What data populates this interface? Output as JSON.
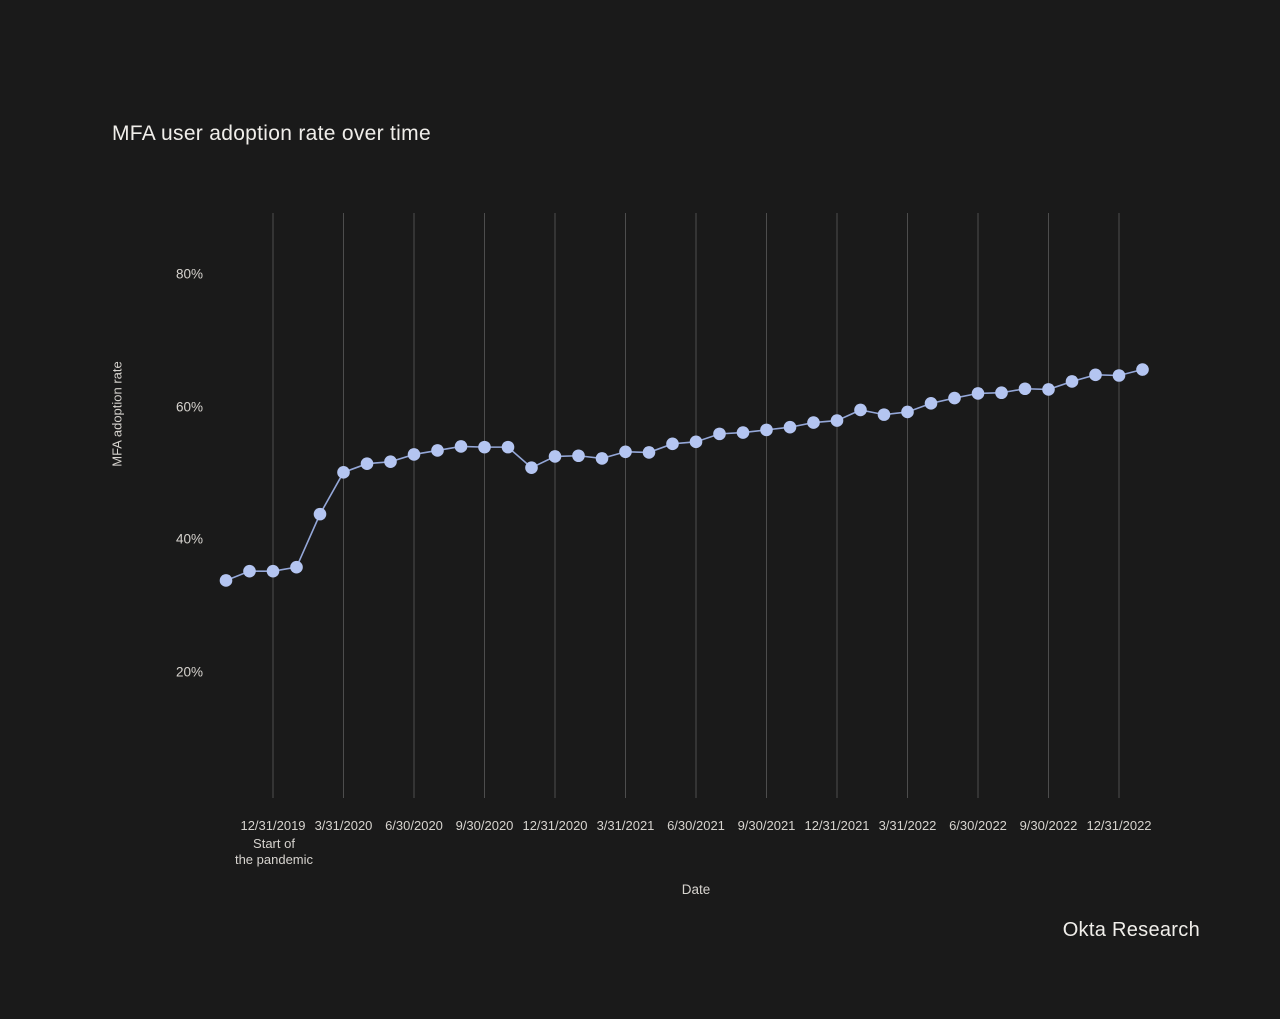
{
  "title": "MFA user adoption rate over time",
  "source": "Okta Research",
  "colors": {
    "background": "#1a1a1a",
    "title": "#f0eeea",
    "text": "#d6d3ce",
    "gridline": "#4d4d4d",
    "accent": "#b4c5f1",
    "line": "#94a7d8"
  },
  "chart_data": {
    "type": "line",
    "title": "MFA user adoption rate over time",
    "xlabel": "Date",
    "ylabel": "MFA adoption rate",
    "ylim": [
      0,
      90
    ],
    "grid": "vertical-only",
    "legend": "none",
    "y_ticks": [
      {
        "label": "80%",
        "value": 80
      },
      {
        "label": "60%",
        "value": 60
      },
      {
        "label": "40%",
        "value": 40
      },
      {
        "label": "20%",
        "value": 20
      }
    ],
    "x_tick_labels": [
      "12/31/2019",
      "3/31/2020",
      "6/30/2020",
      "9/30/2020",
      "12/31/2020",
      "3/31/2021",
      "6/30/2021",
      "9/30/2021",
      "12/31/2021",
      "3/31/2022",
      "6/30/2022",
      "9/30/2022",
      "12/31/2022"
    ],
    "annotation": {
      "lines": [
        "Start of",
        "the pandemic"
      ],
      "anchor_tick": "12/31/2019"
    },
    "series": [
      {
        "name": "MFA adoption rate",
        "x": [
          "10/31/2019",
          "11/30/2019",
          "12/31/2019",
          "1/31/2020",
          "2/29/2020",
          "3/31/2020",
          "4/30/2020",
          "5/31/2020",
          "6/30/2020",
          "7/31/2020",
          "8/31/2020",
          "9/30/2020",
          "10/31/2020",
          "11/30/2020",
          "12/31/2020",
          "1/31/2021",
          "2/28/2021",
          "3/31/2021",
          "4/30/2021",
          "5/31/2021",
          "6/30/2021",
          "7/31/2021",
          "8/31/2021",
          "9/30/2021",
          "10/31/2021",
          "11/30/2021",
          "12/31/2021",
          "1/31/2022",
          "2/28/2022",
          "3/31/2022",
          "4/30/2022",
          "5/31/2022",
          "6/30/2022",
          "7/31/2022",
          "8/31/2022",
          "9/30/2022",
          "10/31/2022",
          "11/30/2022",
          "12/31/2022",
          "1/31/2023"
        ],
        "values": [
          33.8,
          35.2,
          35.2,
          35.8,
          43.8,
          50.1,
          51.4,
          51.7,
          52.8,
          53.4,
          54.0,
          53.9,
          53.9,
          50.8,
          52.5,
          52.6,
          52.2,
          53.2,
          53.1,
          54.4,
          54.7,
          55.9,
          56.1,
          56.5,
          56.9,
          57.6,
          57.9,
          59.5,
          58.8,
          59.2,
          60.5,
          61.3,
          62.0,
          62.1,
          62.7,
          62.6,
          63.8,
          64.8,
          64.7,
          65.6
        ]
      }
    ]
  }
}
